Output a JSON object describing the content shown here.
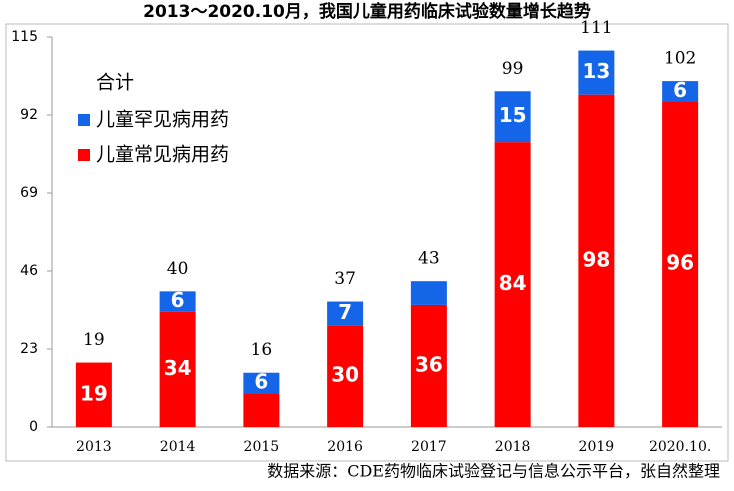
{
  "chart_data": {
    "type": "stacked_bar",
    "title": "2013～2020.10月，我国儿童用药临床试验数量增长趋势",
    "categories": [
      "2013",
      "2014",
      "2015",
      "2016",
      "2017",
      "2018",
      "2019",
      "2020.10."
    ],
    "series": [
      {
        "name": "儿童常见病用药",
        "color": "#ff0000",
        "values": [
          19,
          34,
          10,
          30,
          36,
          84,
          98,
          96
        ],
        "value_labels": [
          "19",
          "34",
          null,
          "30",
          "36",
          "84",
          "98",
          "96"
        ]
      },
      {
        "name": "儿童罕见病用药",
        "color": "#1565e8",
        "values": [
          null,
          6,
          6,
          7,
          7,
          15,
          13,
          6
        ],
        "value_labels": [
          null,
          "6",
          "6",
          "7",
          null,
          "15",
          "13",
          "6"
        ]
      }
    ],
    "totals_name": "合计",
    "totals": [
      19,
      40,
      16,
      37,
      43,
      99,
      111,
      102
    ],
    "ylim": [
      0,
      115
    ],
    "yticks": [
      0,
      23,
      46,
      69,
      92,
      115
    ],
    "source": "数据来源：CDE药物临床试验登记与信息公示平台，张自然整理"
  }
}
